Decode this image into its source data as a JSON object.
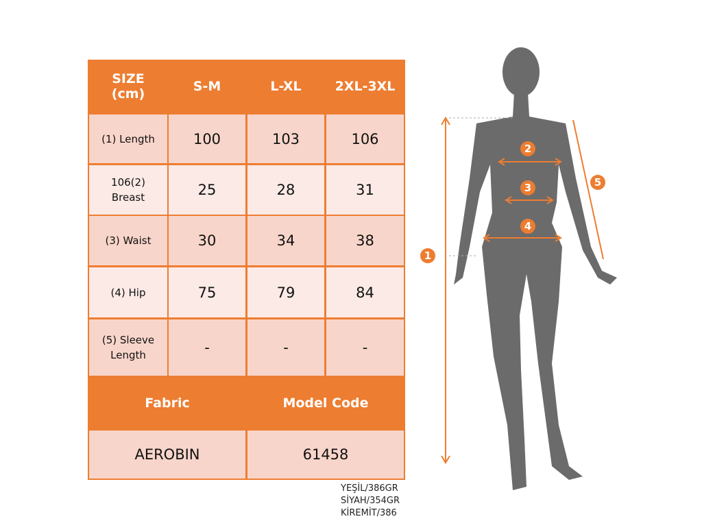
{
  "header": {
    "size": "SIZE\n(cm)",
    "cols": [
      "S-M",
      "L-XL",
      "2XL-3XL"
    ]
  },
  "rows": [
    {
      "label": "(1) Length",
      "values": [
        "100",
        "103",
        "106"
      ]
    },
    {
      "label": "106(2)\nBreast",
      "values": [
        "25",
        "28",
        "31"
      ]
    },
    {
      "label": "(3) Waist",
      "values": [
        "30",
        "34",
        "38"
      ]
    },
    {
      "label": "(4) Hip",
      "values": [
        "75",
        "79",
        "84"
      ]
    },
    {
      "label": "(5) Sleeve\nLength",
      "values": [
        "-",
        "-",
        "-"
      ]
    }
  ],
  "footer": {
    "fabric_label": "Fabric",
    "model_label": "Model Code",
    "fabric": "AEROBIN",
    "model": "61458"
  },
  "colors_text": [
    "YEŞİL/386GR",
    "SİYAH/354GR",
    "KİREMİT/386"
  ],
  "figure": {
    "markers": [
      "1",
      "2",
      "3",
      "4",
      "5"
    ],
    "accent": "#ed7d31",
    "silhouette": "#6b6b6b"
  }
}
